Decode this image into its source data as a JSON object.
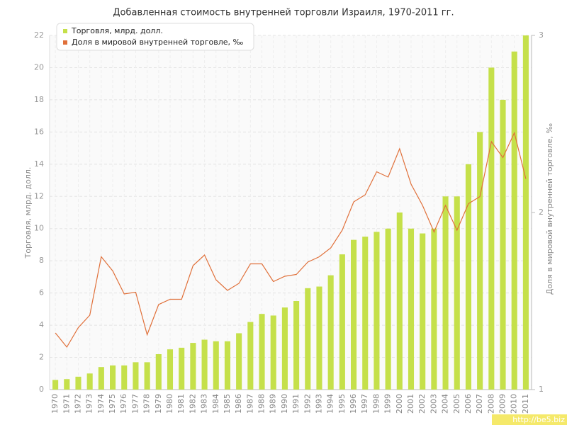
{
  "chart_data": {
    "type": "bar_line",
    "title": "Добавленная стоимость внутренней торговли Израиля, 1970-2011 гг.",
    "y_label": "Торговля, млрд. долл.",
    "y2_label": "Доля в мировой внутренней торговле, ‰",
    "watermark": "http://be5.biz",
    "categories": [
      "1970",
      "1971",
      "1972",
      "1973",
      "1974",
      "1975",
      "1976",
      "1977",
      "1978",
      "1979",
      "1980",
      "1981",
      "1982",
      "1983",
      "1984",
      "1985",
      "1986",
      "1987",
      "1988",
      "1989",
      "1990",
      "1991",
      "1992",
      "1993",
      "1994",
      "1995",
      "1996",
      "1997",
      "1998",
      "1999",
      "2000",
      "2001",
      "2002",
      "2003",
      "2004",
      "2005",
      "2006",
      "2007",
      "2008",
      "2009",
      "2010",
      "2011"
    ],
    "series": [
      {
        "name": "Торговля, млрд. долл.",
        "color": "#c5e04a",
        "kind": "bar",
        "values": [
          0.6,
          0.65,
          0.8,
          1.0,
          1.4,
          1.5,
          1.5,
          1.7,
          1.7,
          2.2,
          2.5,
          2.6,
          2.9,
          3.1,
          3.0,
          3.0,
          3.5,
          4.2,
          4.7,
          4.6,
          5.1,
          5.5,
          6.3,
          6.4,
          7.1,
          8.4,
          9.3,
          9.5,
          9.8,
          10.0,
          11.0,
          10.0,
          9.7,
          10.0,
          12.0,
          12.0,
          14.0,
          16.0,
          20.0,
          18.0,
          21.0,
          22.0
        ]
      },
      {
        "name": "Доля в мировой внутренней торговле, ‰",
        "color": "#e0703a",
        "kind": "line",
        "axis": "y2",
        "values": [
          1.32,
          1.24,
          1.35,
          1.42,
          1.75,
          1.67,
          1.54,
          1.55,
          1.31,
          1.48,
          1.51,
          1.51,
          1.7,
          1.76,
          1.62,
          1.56,
          1.6,
          1.71,
          1.71,
          1.61,
          1.64,
          1.65,
          1.72,
          1.75,
          1.8,
          1.9,
          2.06,
          2.1,
          2.23,
          2.2,
          2.36,
          2.16,
          2.04,
          1.89,
          2.04,
          1.9,
          2.05,
          2.09,
          2.4,
          2.31,
          2.45,
          2.19
        ]
      }
    ],
    "ylim": [
      0,
      22
    ],
    "yticks": [
      0,
      2,
      4,
      6,
      8,
      10,
      12,
      14,
      16,
      18,
      20,
      22
    ],
    "y2lim": [
      1,
      3
    ],
    "y2ticks": [
      1,
      2,
      3
    ],
    "grid": true,
    "legend": "top-left"
  }
}
